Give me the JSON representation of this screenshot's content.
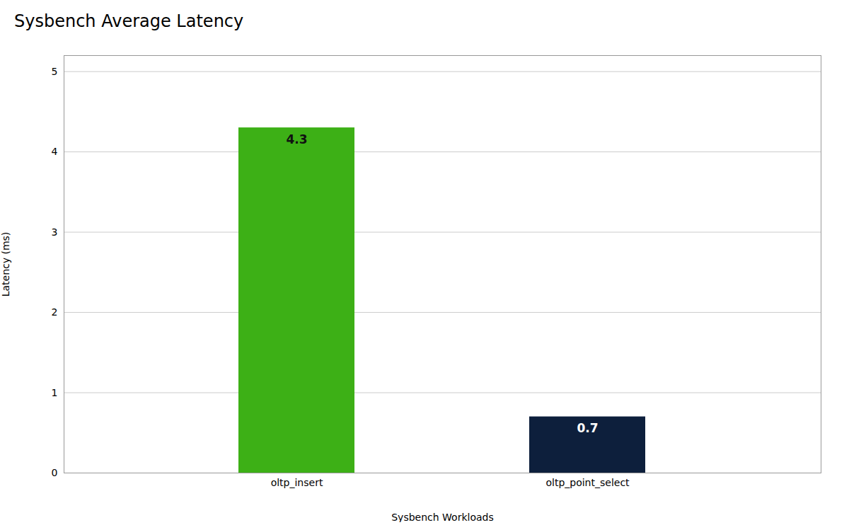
{
  "chart_data": {
    "type": "bar",
    "title": "Sysbench Average Latency",
    "xlabel": "Sysbench Workloads",
    "ylabel": "Latency (ms)",
    "categories": [
      "oltp_insert",
      "oltp_point_select"
    ],
    "values": [
      4.3,
      0.7
    ],
    "colors": [
      "#3db016",
      "#0d1f3c"
    ],
    "ylim": [
      0,
      5.2
    ],
    "yticks": [
      0,
      1,
      2,
      3,
      4,
      5
    ],
    "grid": true,
    "data_labels": true
  }
}
